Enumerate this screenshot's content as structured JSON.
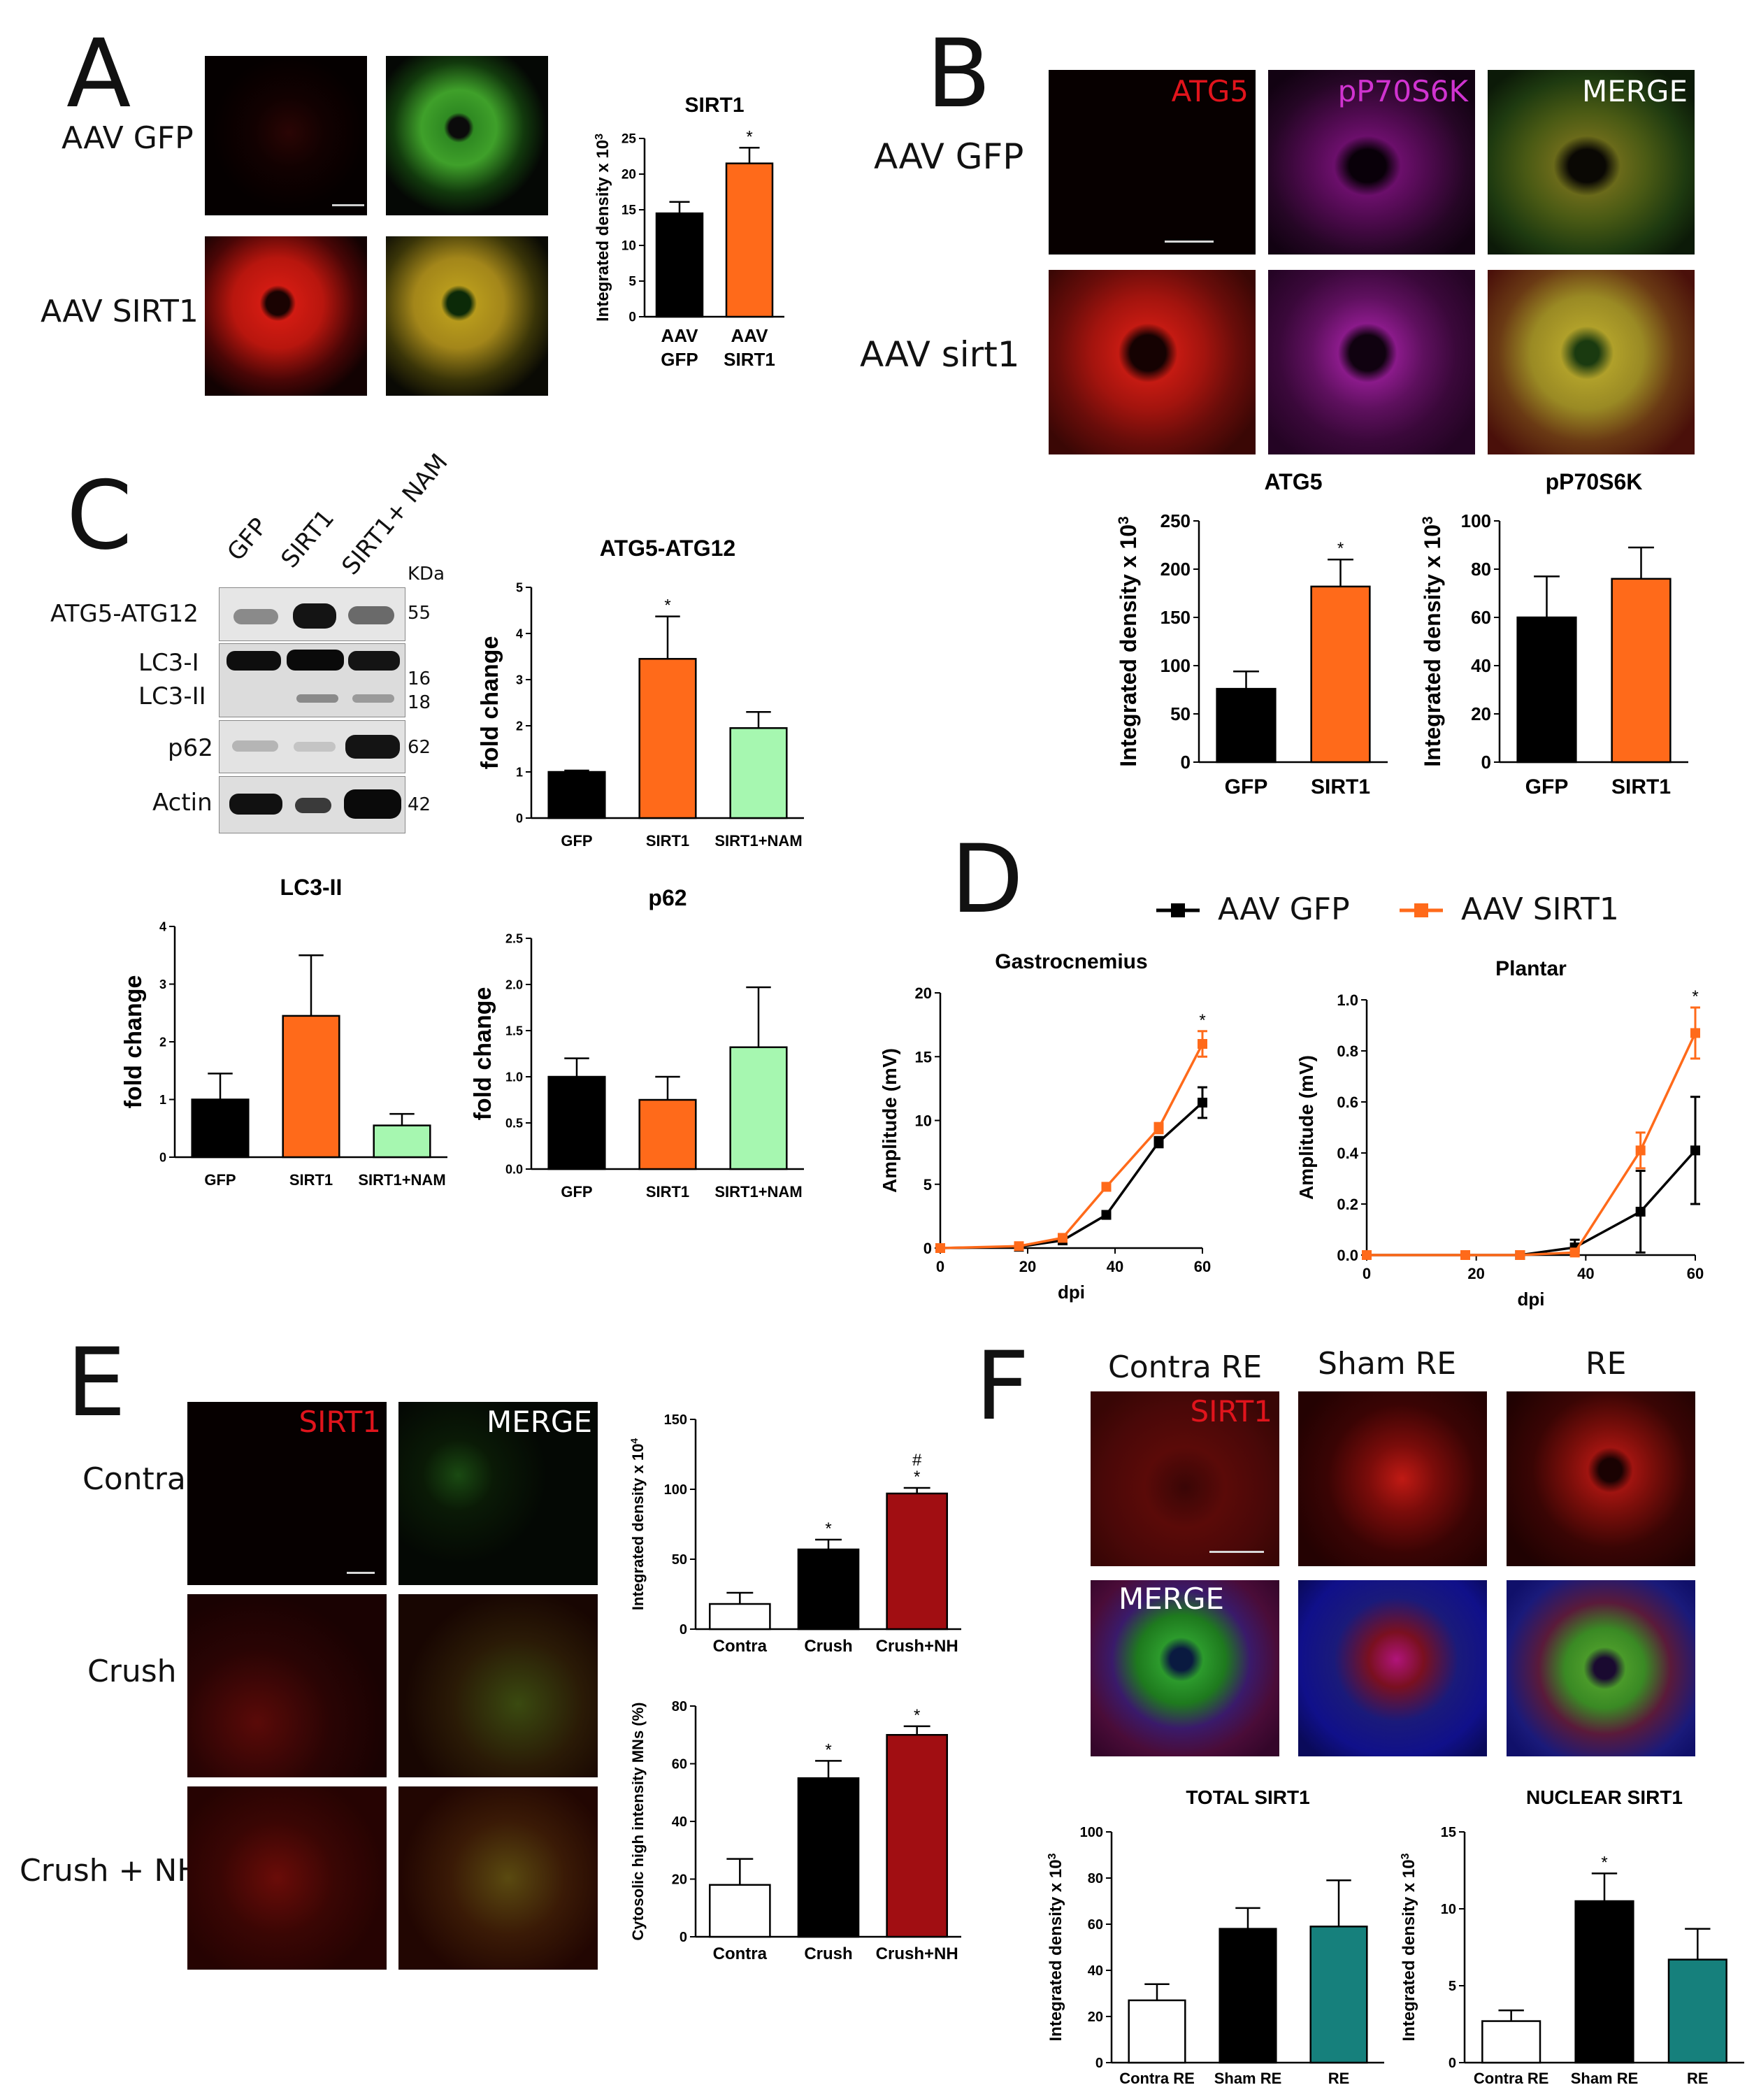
{
  "panels": {
    "A": {
      "letter": "A",
      "rows": [
        "AAV GFP",
        "AAV SIRT1"
      ]
    },
    "B": {
      "letter": "B",
      "rows": [
        "AAV GFP",
        "AAV sirt1"
      ],
      "channels": [
        "ATG5",
        "pP70S6K",
        "MERGE"
      ]
    },
    "C": {
      "letter": "C",
      "lanes": [
        "GFP",
        "SIRT1",
        "SIRT1+ NAM"
      ],
      "kda_header": "KDa",
      "bands": [
        {
          "label": "ATG5-ATG12",
          "kda": "55"
        },
        {
          "label": "LC3-I",
          "kda": "16"
        },
        {
          "label": "LC3-II",
          "kda": "18"
        },
        {
          "label": "p62",
          "kda": "62"
        },
        {
          "label": "Actin",
          "kda": "42"
        }
      ]
    },
    "D": {
      "letter": "D",
      "legend": [
        "AAV GFP",
        "AAV SIRT1"
      ]
    },
    "E": {
      "letter": "E",
      "rows": [
        "Contra",
        "Crush",
        "Crush + NH"
      ],
      "channels": [
        "SIRT1",
        "MERGE"
      ]
    },
    "F": {
      "letter": "F",
      "columns": [
        "Contra RE",
        "Sham RE",
        "RE"
      ],
      "channels": [
        "SIRT1",
        "MERGE"
      ]
    }
  },
  "colors": {
    "black": "#000000",
    "orange": "#ff6a1a",
    "light_green": "#a6f7b0",
    "dark_red": "#a10e12",
    "teal": "#16807c",
    "white": "#ffffff"
  },
  "chart_data": [
    {
      "id": "A-SIRT1",
      "type": "bar",
      "title": "SIRT1",
      "ylabel": "Integrated density x 10^3",
      "categories": [
        "AAV GFP",
        "AAV SIRT1"
      ],
      "values": [
        14.5,
        21.5
      ],
      "errors": [
        1.6,
        2.2
      ],
      "sig": [
        "",
        "*"
      ],
      "colors": [
        "#000000",
        "#ff6a1a"
      ],
      "ylim": [
        0,
        25
      ],
      "yticks": [
        0,
        5,
        10,
        15,
        20,
        25
      ]
    },
    {
      "id": "B-ATG5",
      "type": "bar",
      "title": "ATG5",
      "ylabel": "Integrated density x 10^3",
      "categories": [
        "GFP",
        "SIRT1"
      ],
      "values": [
        76,
        182
      ],
      "errors": [
        18,
        28
      ],
      "sig": [
        "",
        "*"
      ],
      "colors": [
        "#000000",
        "#ff6a1a"
      ],
      "ylim": [
        0,
        250
      ],
      "yticks": [
        0,
        50,
        100,
        150,
        200,
        250
      ]
    },
    {
      "id": "B-pP70S6K",
      "type": "bar",
      "title": "pP70S6K",
      "ylabel": "Integrated density x 10^3",
      "categories": [
        "GFP",
        "SIRT1"
      ],
      "values": [
        60,
        76
      ],
      "errors": [
        17,
        13
      ],
      "sig": [
        "",
        ""
      ],
      "colors": [
        "#000000",
        "#ff6a1a"
      ],
      "ylim": [
        0,
        100
      ],
      "yticks": [
        0,
        20,
        40,
        60,
        80,
        100
      ]
    },
    {
      "id": "C-ATG5-ATG12",
      "type": "bar",
      "title": "ATG5-ATG12",
      "ylabel": "fold change",
      "categories": [
        "GFP",
        "SIRT1",
        "SIRT1+NAM"
      ],
      "values": [
        1.0,
        3.45,
        1.95
      ],
      "errors": [
        0.03,
        0.92,
        0.35
      ],
      "sig": [
        "",
        "*",
        ""
      ],
      "colors": [
        "#000000",
        "#ff6a1a",
        "#a6f7b0"
      ],
      "ylim": [
        0,
        5
      ],
      "yticks": [
        0,
        1,
        2,
        3,
        4,
        5
      ]
    },
    {
      "id": "C-LC3-II",
      "type": "bar",
      "title": "LC3-II",
      "ylabel": "fold change",
      "categories": [
        "GFP",
        "SIRT1",
        "SIRT1+NAM"
      ],
      "values": [
        1.0,
        2.45,
        0.55
      ],
      "errors": [
        0.45,
        1.05,
        0.2
      ],
      "sig": [
        "",
        "",
        ""
      ],
      "colors": [
        "#000000",
        "#ff6a1a",
        "#a6f7b0"
      ],
      "ylim": [
        0,
        4
      ],
      "yticks": [
        0,
        1,
        2,
        3,
        4
      ]
    },
    {
      "id": "C-p62",
      "type": "bar",
      "title": "p62",
      "ylabel": "fold change",
      "categories": [
        "GFP",
        "SIRT1",
        "SIRT1+NAM"
      ],
      "values": [
        1.0,
        0.75,
        1.32
      ],
      "errors": [
        0.2,
        0.25,
        0.65
      ],
      "sig": [
        "",
        "",
        ""
      ],
      "colors": [
        "#000000",
        "#ff6a1a",
        "#a6f7b0"
      ],
      "ylim": [
        0,
        2.5
      ],
      "yticks": [
        "0.0",
        "0.5",
        "1.0",
        "1.5",
        "2.0",
        "2.5"
      ]
    },
    {
      "id": "D-Gastrocnemius",
      "type": "line",
      "title": "Gastrocnemius",
      "xlabel": "dpi",
      "ylabel": "Amplitude (mV)",
      "xlim": [
        0,
        60
      ],
      "ylim": [
        0,
        20
      ],
      "xticks": [
        0,
        20,
        40,
        60
      ],
      "yticks": [
        0,
        5,
        10,
        15,
        20
      ],
      "series": [
        {
          "name": "AAV GFP",
          "color": "#000000",
          "x": [
            0,
            18,
            28,
            38,
            50,
            60
          ],
          "y": [
            0,
            0.1,
            0.6,
            2.6,
            8.3,
            11.4
          ],
          "err": [
            0,
            0,
            0.2,
            0.3,
            0.4,
            1.2
          ]
        },
        {
          "name": "AAV SIRT1",
          "color": "#ff6a1a",
          "x": [
            0,
            18,
            28,
            38,
            50,
            60
          ],
          "y": [
            0,
            0.15,
            0.8,
            4.8,
            9.4,
            16.0
          ],
          "err": [
            0,
            0,
            0.2,
            0.3,
            0.4,
            1.0
          ]
        }
      ],
      "sig_at": [
        {
          "x": 60,
          "label": "*"
        }
      ]
    },
    {
      "id": "D-Plantar",
      "type": "line",
      "title": "Plantar",
      "xlabel": "dpi",
      "ylabel": "Amplitude (mV)",
      "xlim": [
        0,
        60
      ],
      "ylim": [
        0,
        1.0
      ],
      "xticks": [
        0,
        20,
        40,
        60
      ],
      "yticks": [
        "0.0",
        "0.2",
        "0.4",
        "0.6",
        "0.8",
        "1.0"
      ],
      "series": [
        {
          "name": "AAV GFP",
          "color": "#000000",
          "x": [
            0,
            18,
            28,
            38,
            50,
            60
          ],
          "y": [
            0,
            0,
            0,
            0.03,
            0.17,
            0.41
          ],
          "err": [
            0,
            0,
            0,
            0.03,
            0.16,
            0.21
          ]
        },
        {
          "name": "AAV SIRT1",
          "color": "#ff6a1a",
          "x": [
            0,
            18,
            28,
            38,
            50,
            60
          ],
          "y": [
            0,
            0,
            0,
            0.01,
            0.41,
            0.87
          ],
          "err": [
            0,
            0,
            0,
            0.01,
            0.07,
            0.1
          ]
        }
      ],
      "sig_at": [
        {
          "x": 60,
          "label": "*"
        }
      ]
    },
    {
      "id": "E-density",
      "type": "bar",
      "title": "",
      "ylabel": "Integrated density x 10^4",
      "categories": [
        "Contra",
        "Crush",
        "Crush+NH"
      ],
      "values": [
        18,
        57,
        97
      ],
      "errors": [
        8,
        7,
        4
      ],
      "sig": [
        "",
        "*",
        "#\n*"
      ],
      "colors": [
        "#ffffff",
        "#000000",
        "#a10e12"
      ],
      "ylim": [
        0,
        150
      ],
      "yticks": [
        0,
        50,
        100,
        150
      ]
    },
    {
      "id": "E-cytosolic",
      "type": "bar",
      "title": "",
      "ylabel": "Cytosolic high intensity MNs (%)",
      "categories": [
        "Contra",
        "Crush",
        "Crush+NH"
      ],
      "values": [
        18,
        55,
        70
      ],
      "errors": [
        9,
        6,
        3
      ],
      "sig": [
        "",
        "*",
        "*"
      ],
      "colors": [
        "#ffffff",
        "#000000",
        "#a10e12"
      ],
      "ylim": [
        0,
        80
      ],
      "yticks": [
        0,
        20,
        40,
        60,
        80
      ]
    },
    {
      "id": "F-TOTAL-SIRT1",
      "type": "bar",
      "title": "TOTAL SIRT1",
      "ylabel": "Integrated density x 10^3",
      "categories": [
        "Contra RE",
        "Sham RE",
        "RE"
      ],
      "values": [
        27,
        58,
        59
      ],
      "errors": [
        7,
        9,
        20
      ],
      "sig": [
        "",
        "",
        ""
      ],
      "colors": [
        "#ffffff",
        "#000000",
        "#16807c"
      ],
      "ylim": [
        0,
        100
      ],
      "yticks": [
        0,
        20,
        40,
        60,
        80,
        100
      ]
    },
    {
      "id": "F-NUCLEAR-SIRT1",
      "type": "bar",
      "title": "NUCLEAR SIRT1",
      "ylabel": "Integrated density x 10^3",
      "categories": [
        "Contra RE",
        "Sham RE",
        "RE"
      ],
      "values": [
        2.7,
        10.5,
        6.7
      ],
      "errors": [
        0.7,
        1.8,
        2.0
      ],
      "sig": [
        "",
        "*",
        ""
      ],
      "colors": [
        "#ffffff",
        "#000000",
        "#16807c"
      ],
      "ylim": [
        0,
        15
      ],
      "yticks": [
        0,
        5,
        10,
        15
      ]
    }
  ]
}
